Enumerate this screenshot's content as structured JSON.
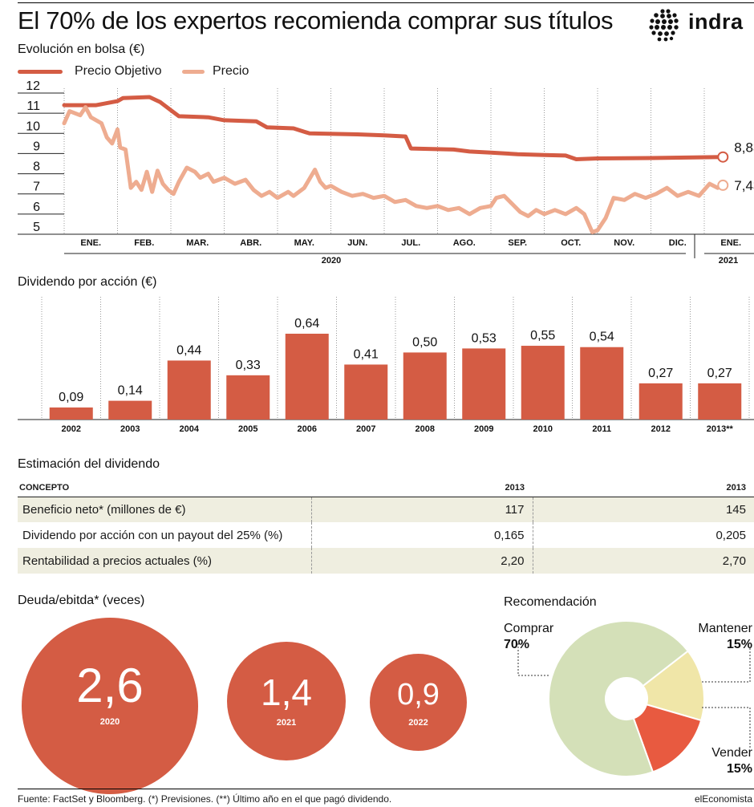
{
  "header": {
    "title": "El 70% de los expertos recomienda comprar sus títulos",
    "brand": "indra"
  },
  "stock": {
    "section_title": "Evolución en bolsa (€)",
    "legend": [
      {
        "label": "Precio Objetivo",
        "color": "#d45c44"
      },
      {
        "label": "Precio",
        "color": "#eeac90"
      }
    ],
    "end_labels": {
      "target": "8,83",
      "price": "7,43"
    },
    "year_labels": {
      "y2020": "2020",
      "y2021": "2021"
    }
  },
  "dividend": {
    "section_title": "Dividendo por acción (€)"
  },
  "estimate": {
    "section_title": "Estimación del dividendo",
    "headers": [
      "CONCEPTO",
      "2013",
      "2013"
    ],
    "rows": [
      {
        "concept": "Beneficio neto* (millones de €)",
        "v1": "117",
        "v2": "145"
      },
      {
        "concept": "Dividendo por acción con un payout del 25% (%)",
        "v1": "0,165",
        "v2": "0,205"
      },
      {
        "concept": "Rentabilidad a precios actuales (%)",
        "v1": "2,20",
        "v2": "2,70"
      }
    ]
  },
  "debt": {
    "section_title": "Deuda/ebitda* (veces)",
    "bubbles": [
      {
        "value": "2,6",
        "year": "2020"
      },
      {
        "value": "1,4",
        "year": "2021"
      },
      {
        "value": "0,9",
        "year": "2022"
      }
    ]
  },
  "recommendation": {
    "section_title": "Recomendación",
    "labels": {
      "buy": "Comprar",
      "buy_pct": "70%",
      "hold": "Mantener",
      "hold_pct": "15%",
      "sell": "Vender",
      "sell_pct": "15%"
    }
  },
  "footer": {
    "note": "Fuente: FactSet y Bloomberg. (*) Previsiones. (**) Último año en el que pagó dividendo.",
    "brand": "elEconomista"
  },
  "chart_data": [
    {
      "type": "line",
      "title": "Evolución en bolsa (€)",
      "ylim": [
        5,
        12
      ],
      "y_ticks": [
        5,
        6,
        7,
        8,
        9,
        10,
        11,
        12
      ],
      "x_tick_labels": [
        "ENE.",
        "FEB.",
        "MAR.",
        "ABR.",
        "MAY.",
        "JUN.",
        "JUL.",
        "AGO.",
        "SEP.",
        "OCT.",
        "NOV.",
        "DIC.",
        "ENE."
      ],
      "x_group_labels": [
        "2020",
        "2021"
      ],
      "grid": "vertical dotted",
      "legend_position": "top-left",
      "series": [
        {
          "name": "Precio Objetivo",
          "color": "#d45c44",
          "points": [
            [
              0.0,
              11.4
            ],
            [
              0.6,
              11.4
            ],
            [
              0.8,
              11.5
            ],
            [
              1.0,
              11.6
            ],
            [
              1.1,
              11.75
            ],
            [
              1.6,
              11.8
            ],
            [
              1.8,
              11.55
            ],
            [
              2.0,
              11.15
            ],
            [
              2.15,
              10.85
            ],
            [
              2.7,
              10.8
            ],
            [
              3.0,
              10.65
            ],
            [
              3.6,
              10.6
            ],
            [
              3.8,
              10.3
            ],
            [
              4.3,
              10.25
            ],
            [
              4.6,
              10.0
            ],
            [
              5.5,
              9.95
            ],
            [
              6.0,
              9.9
            ],
            [
              6.4,
              9.85
            ],
            [
              6.5,
              9.25
            ],
            [
              7.3,
              9.2
            ],
            [
              7.6,
              9.1
            ],
            [
              8.0,
              9.05
            ],
            [
              8.5,
              8.97
            ],
            [
              9.0,
              8.93
            ],
            [
              9.4,
              8.9
            ],
            [
              9.6,
              8.72
            ],
            [
              10.0,
              8.76
            ],
            [
              11.0,
              8.78
            ],
            [
              11.8,
              8.81
            ],
            [
              12.35,
              8.83
            ]
          ],
          "end_value": 8.83
        },
        {
          "name": "Precio",
          "color": "#eeac90",
          "points": [
            [
              0.0,
              10.5
            ],
            [
              0.1,
              11.1
            ],
            [
              0.3,
              10.9
            ],
            [
              0.4,
              11.3
            ],
            [
              0.5,
              10.8
            ],
            [
              0.7,
              10.5
            ],
            [
              0.8,
              9.8
            ],
            [
              0.9,
              9.5
            ],
            [
              1.0,
              10.2
            ],
            [
              1.05,
              9.3
            ],
            [
              1.15,
              9.2
            ],
            [
              1.25,
              7.3
            ],
            [
              1.35,
              7.6
            ],
            [
              1.45,
              7.2
            ],
            [
              1.55,
              8.1
            ],
            [
              1.65,
              7.1
            ],
            [
              1.75,
              8.15
            ],
            [
              1.85,
              7.5
            ],
            [
              1.95,
              7.2
            ],
            [
              2.05,
              7.0
            ],
            [
              2.15,
              7.6
            ],
            [
              2.3,
              8.3
            ],
            [
              2.45,
              8.1
            ],
            [
              2.55,
              7.8
            ],
            [
              2.7,
              8.0
            ],
            [
              2.8,
              7.6
            ],
            [
              3.0,
              7.8
            ],
            [
              3.2,
              7.5
            ],
            [
              3.4,
              7.7
            ],
            [
              3.55,
              7.2
            ],
            [
              3.7,
              6.9
            ],
            [
              3.85,
              7.1
            ],
            [
              4.0,
              6.8
            ],
            [
              4.2,
              7.1
            ],
            [
              4.3,
              6.9
            ],
            [
              4.5,
              7.3
            ],
            [
              4.7,
              8.2
            ],
            [
              4.8,
              7.6
            ],
            [
              4.9,
              7.3
            ],
            [
              5.0,
              7.4
            ],
            [
              5.2,
              7.1
            ],
            [
              5.4,
              6.9
            ],
            [
              5.6,
              7.0
            ],
            [
              5.8,
              6.8
            ],
            [
              6.0,
              6.9
            ],
            [
              6.2,
              6.6
            ],
            [
              6.4,
              6.7
            ],
            [
              6.6,
              6.4
            ],
            [
              6.8,
              6.3
            ],
            [
              7.0,
              6.4
            ],
            [
              7.2,
              6.2
            ],
            [
              7.4,
              6.3
            ],
            [
              7.6,
              6.0
            ],
            [
              7.8,
              6.3
            ],
            [
              8.0,
              6.4
            ],
            [
              8.1,
              6.8
            ],
            [
              8.25,
              6.9
            ],
            [
              8.4,
              6.5
            ],
            [
              8.55,
              6.1
            ],
            [
              8.7,
              5.9
            ],
            [
              8.85,
              6.2
            ],
            [
              9.0,
              6.0
            ],
            [
              9.2,
              6.2
            ],
            [
              9.4,
              6.0
            ],
            [
              9.6,
              6.3
            ],
            [
              9.75,
              6.0
            ],
            [
              9.9,
              5.1
            ],
            [
              10.0,
              5.2
            ],
            [
              10.15,
              5.8
            ],
            [
              10.3,
              6.8
            ],
            [
              10.5,
              6.7
            ],
            [
              10.7,
              7.0
            ],
            [
              10.9,
              6.8
            ],
            [
              11.1,
              7.0
            ],
            [
              11.3,
              7.3
            ],
            [
              11.5,
              6.9
            ],
            [
              11.7,
              7.1
            ],
            [
              11.9,
              6.9
            ],
            [
              12.0,
              7.2
            ],
            [
              12.1,
              7.5
            ],
            [
              12.25,
              7.3
            ],
            [
              12.35,
              7.43
            ]
          ],
          "end_value": 7.43
        }
      ]
    },
    {
      "type": "bar",
      "title": "Dividendo por acción (€)",
      "categories": [
        "2002",
        "2003",
        "2004",
        "2005",
        "2006",
        "2007",
        "2008",
        "2009",
        "2010",
        "2011",
        "2012",
        "2013**"
      ],
      "values": [
        0.09,
        0.14,
        0.44,
        0.33,
        0.64,
        0.41,
        0.5,
        0.53,
        0.55,
        0.54,
        0.27,
        0.27
      ],
      "value_labels": [
        "0,09",
        "0,14",
        "0,44",
        "0,33",
        "0,64",
        "0,41",
        "0,50",
        "0,53",
        "0,55",
        "0,54",
        "0,27",
        "0,27"
      ],
      "ylim": [
        0,
        0.8
      ],
      "bar_color": "#d45c44"
    },
    {
      "type": "bubble",
      "title": "Deuda/ebitda* (veces)",
      "categories": [
        "2020",
        "2021",
        "2022"
      ],
      "values": [
        2.6,
        1.4,
        0.9
      ],
      "value_labels": [
        "2,6",
        "1,4",
        "0,9"
      ],
      "color": "#d45c44"
    },
    {
      "type": "pie",
      "title": "Recomendación",
      "style": "donut",
      "slices": [
        {
          "label": "Comprar",
          "value": 70,
          "color": "#d4e0b8"
        },
        {
          "label": "Mantener",
          "value": 15,
          "color": "#f0e6a8"
        },
        {
          "label": "Vender",
          "value": 15,
          "color": "#e85a40"
        }
      ]
    }
  ]
}
